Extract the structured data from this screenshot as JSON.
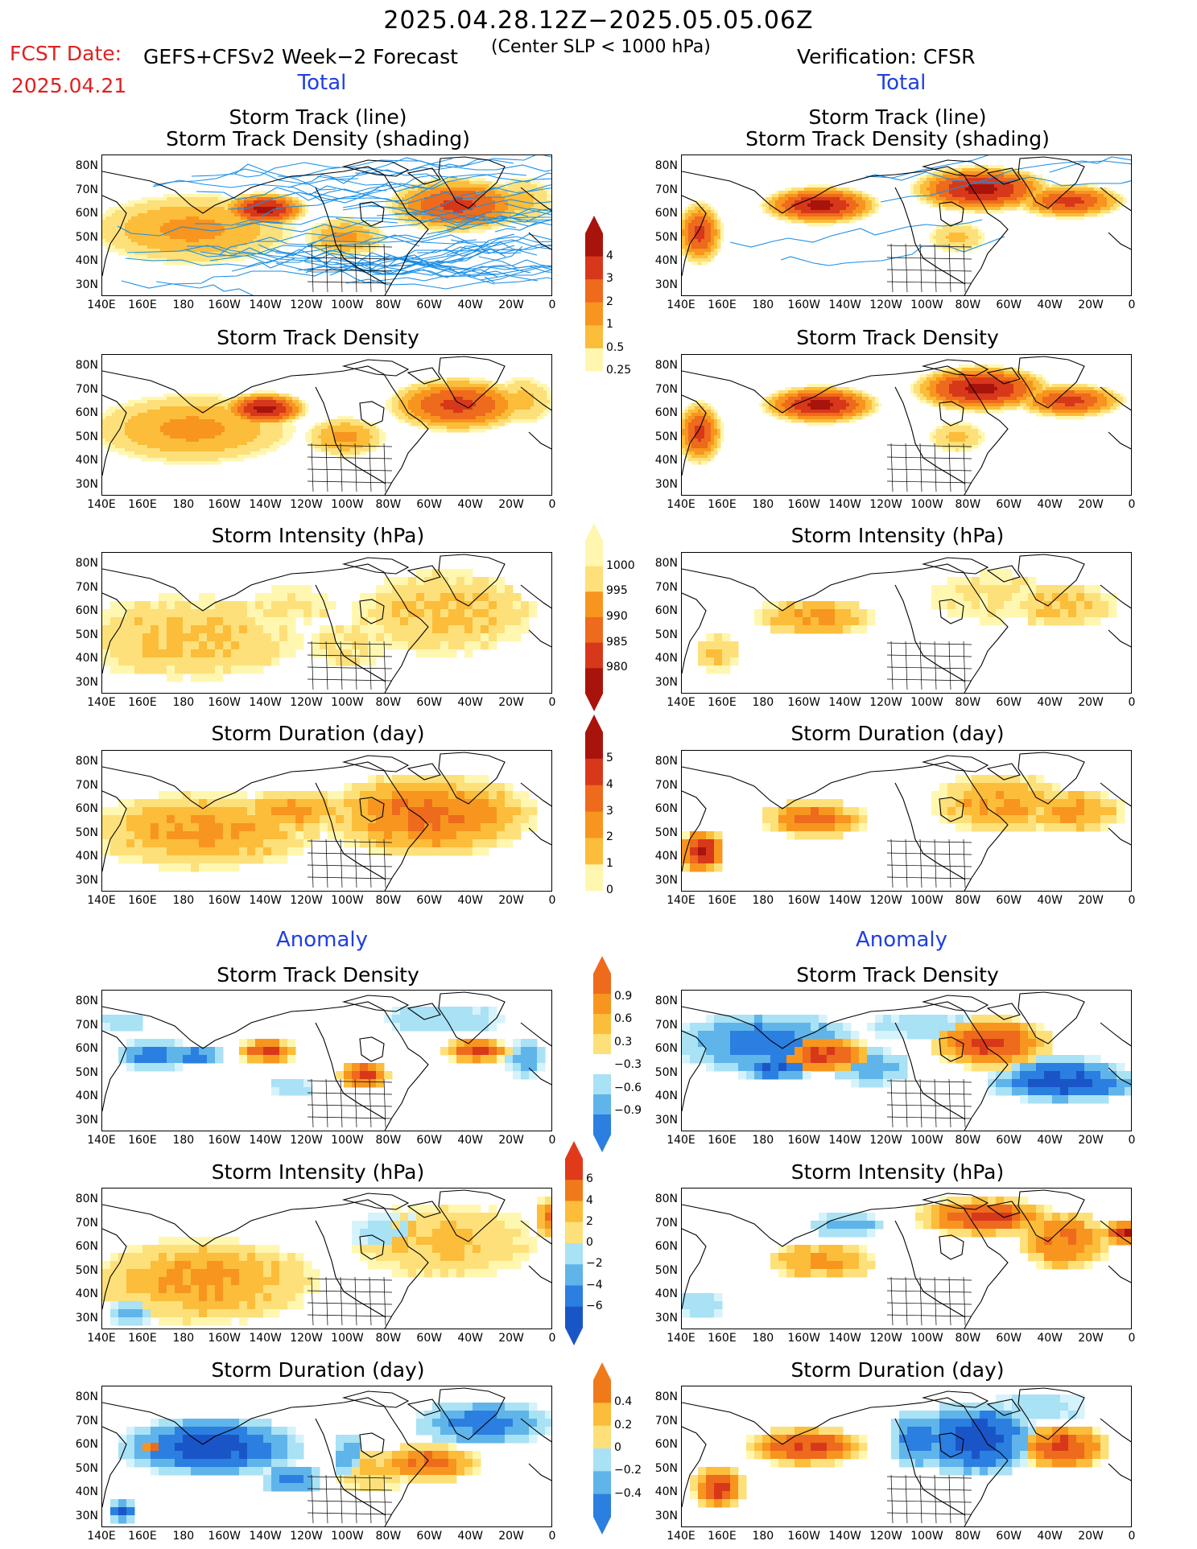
{
  "header": {
    "title": "2025.04.28.12Z−2025.05.05.06Z",
    "fcst_label": "FCST Date:",
    "fcst_date": "2025.04.21",
    "model": "GEFS+CFSv2 Week−2 Forecast",
    "slp": "(Center SLP < 1000 hPa)",
    "verification": "Verification: CFSR"
  },
  "sections": {
    "total_left": "Total",
    "total_right": "Total",
    "anomaly_left": "Anomaly",
    "anomaly_right": "Anomaly"
  },
  "panel_titles": {
    "track_line": "Storm Track (line)",
    "track_shading": "Storm Track Density (shading)",
    "density": "Storm Track Density",
    "intensity": "Storm Intensity (hPa)",
    "duration": "Storm Duration (day)"
  },
  "axes": {
    "lat_labels": [
      "80N",
      "70N",
      "60N",
      "50N",
      "40N",
      "30N"
    ],
    "lon_labels": [
      "140E",
      "160E",
      "180",
      "160W",
      "140W",
      "120W",
      "100W",
      "80W",
      "60W",
      "40W",
      "20W",
      "0"
    ]
  },
  "colorbars": {
    "density_total": [
      "4",
      "3",
      "2",
      "1",
      "0.5",
      "0.25"
    ],
    "intensity_total": [
      "1000",
      "995",
      "990",
      "985",
      "980"
    ],
    "duration_total": [
      "5",
      "4",
      "3",
      "2",
      "1",
      "0"
    ],
    "density_anom": [
      "0.9",
      "0.6",
      "0.3",
      "−0.3",
      "−0.6",
      "−0.9"
    ],
    "intensity_anom": [
      "6",
      "4",
      "2",
      "0",
      "−2",
      "−4",
      "−6"
    ],
    "duration_anom": [
      "0.4",
      "0.2",
      "0",
      "−0.2",
      "−0.4"
    ]
  },
  "colors": {
    "warm": [
      "#fff7b0",
      "#fde07a",
      "#fbbd3a",
      "#f7951f",
      "#ee6a1c",
      "#d8381a",
      "#a8140c"
    ],
    "cool": [
      "#d6f3fb",
      "#a9e1f5",
      "#5fb4ea",
      "#2a7fe0",
      "#1a55c8"
    ],
    "track_line": "#1a8fe6",
    "title_blue": "#1f3fe0",
    "fcst_red": "#e02020"
  }
}
